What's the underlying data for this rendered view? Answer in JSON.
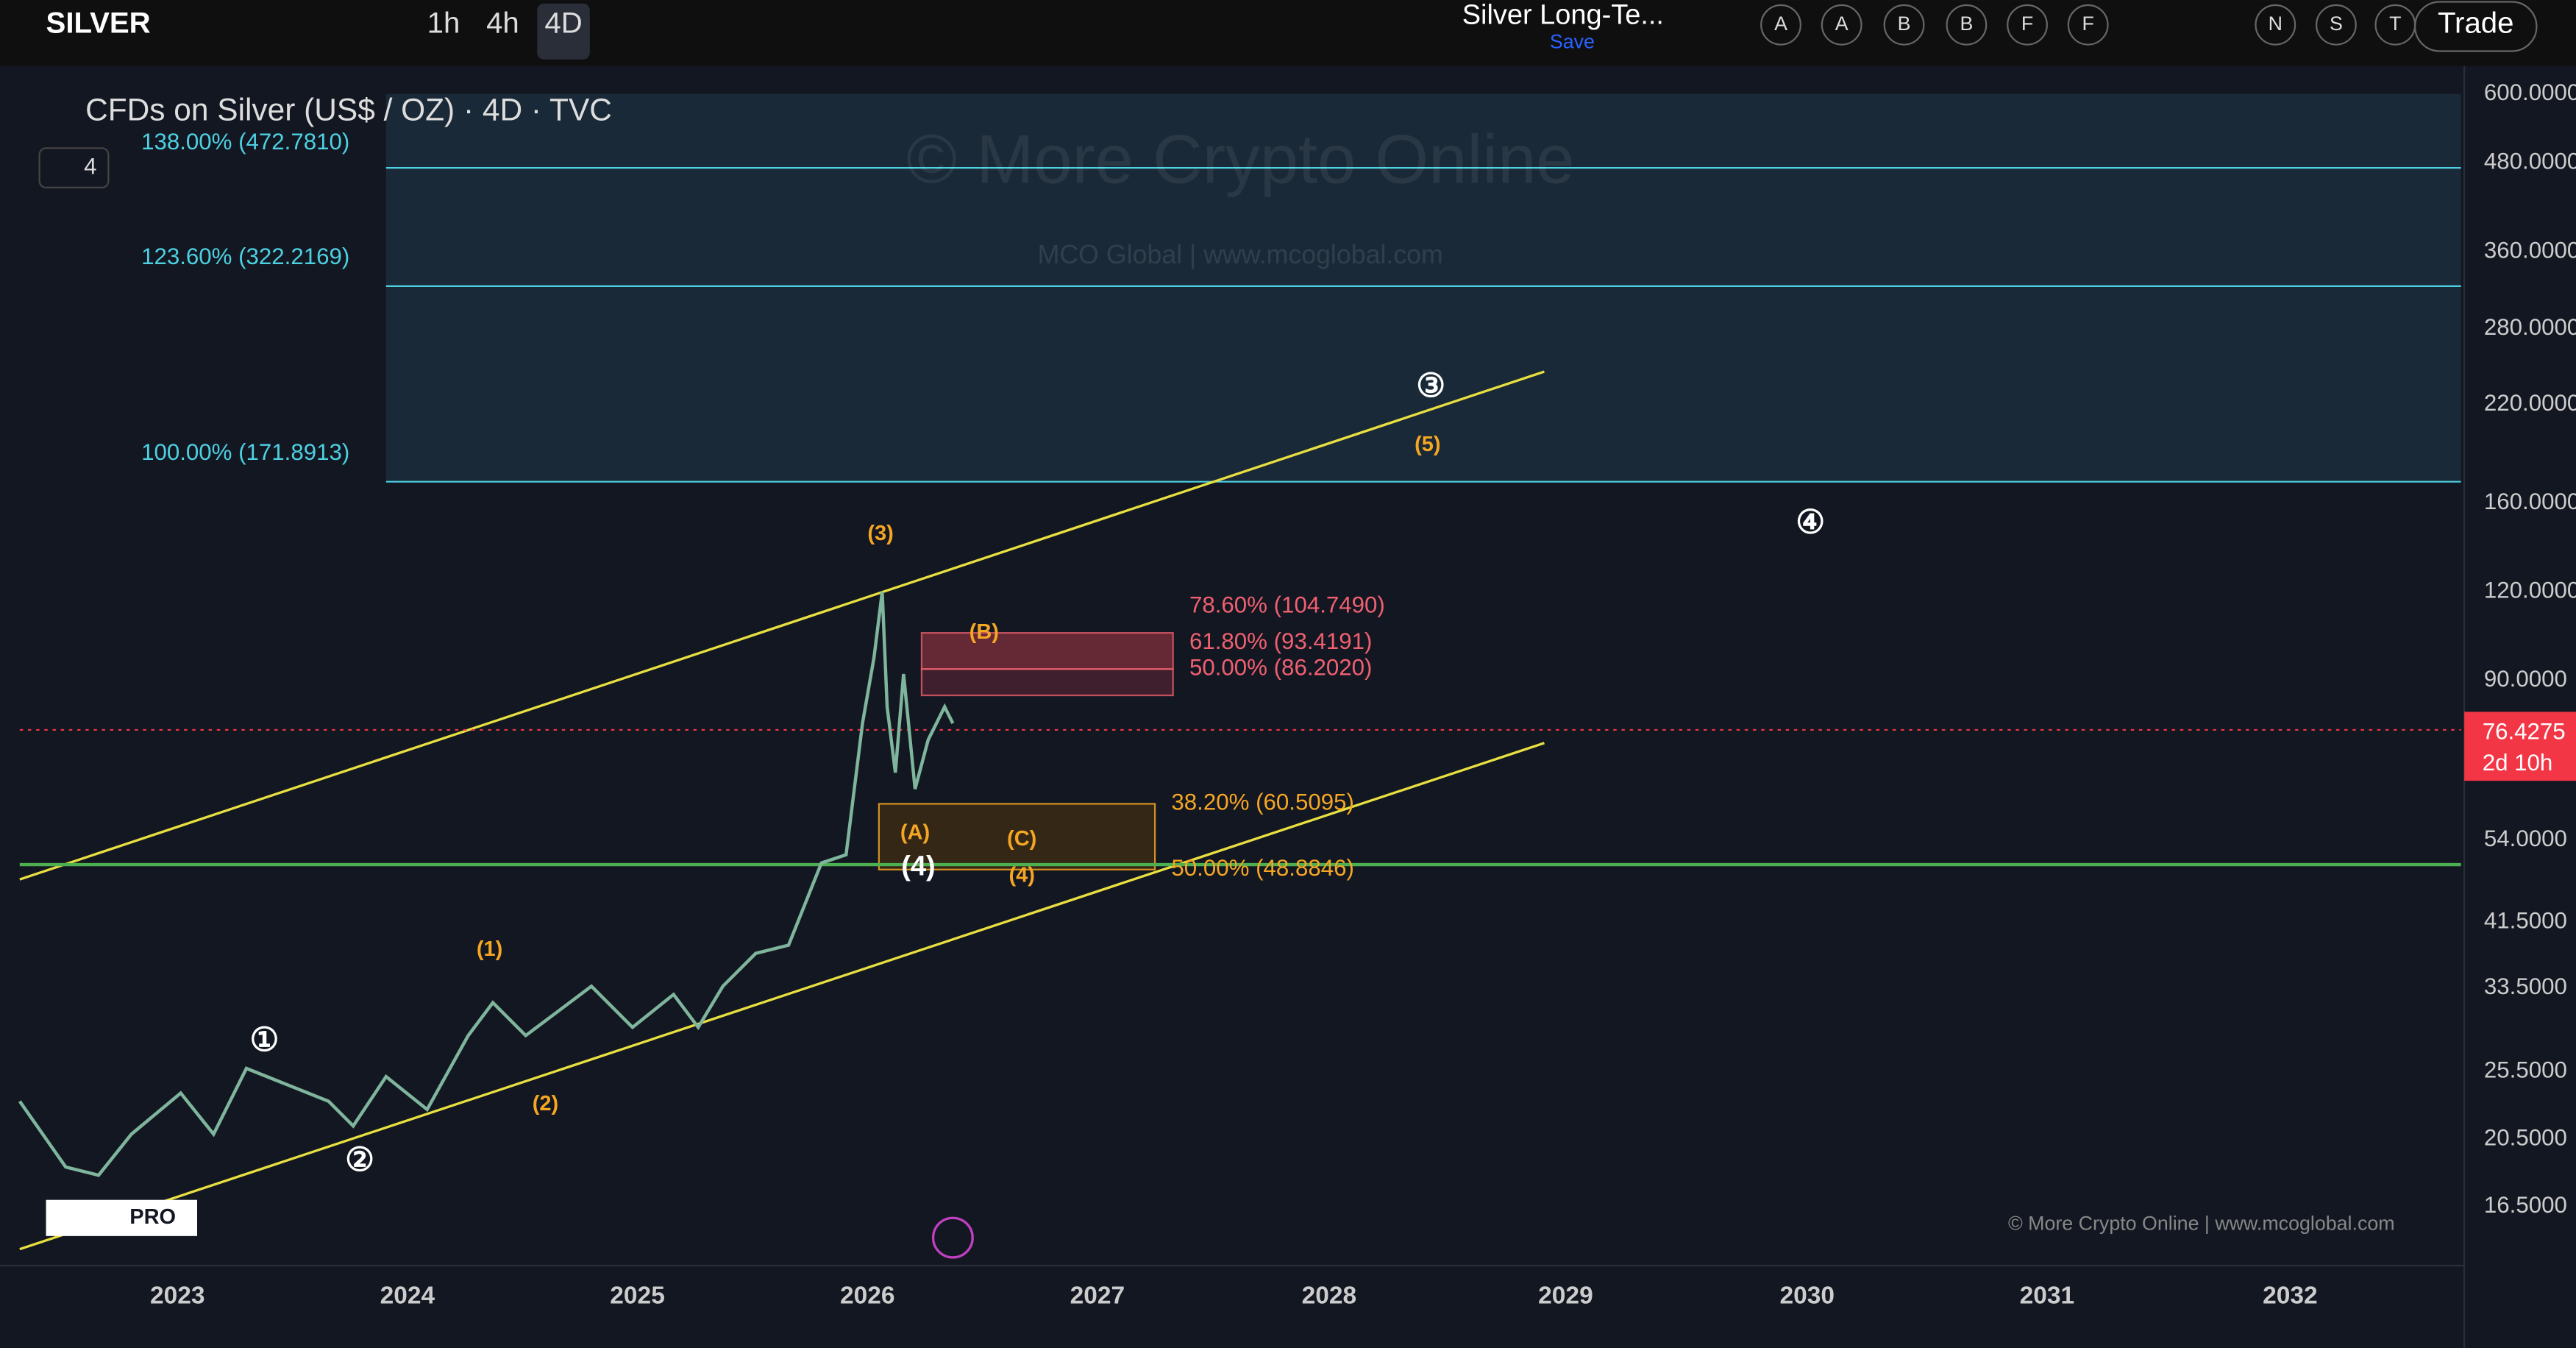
{
  "toolbar": {
    "symbol": "SILVER",
    "intervals": [
      "1h",
      "4h",
      "4D"
    ],
    "layout_name": "Silver Long-Te...",
    "save": "Save",
    "drawing_letters": [
      "A",
      "A",
      "B",
      "B",
      "F",
      "F",
      "N",
      "S",
      "T"
    ],
    "trade": "Trade"
  },
  "chart": {
    "legend": "CFDs on Silver (US$ / OZ) · 4D · TVC",
    "indicator_count": "4",
    "watermark": "© More Crypto Online",
    "watermark_sub": "MCO Global  |  www.mcoglobal.com",
    "footer_watermark": "© More Crypto Online  |  www.mcoglobal.com",
    "logo_badge": "PRO",
    "price_axis": [
      "600.0000",
      "480.0000",
      "360.0000",
      "280.0000",
      "220.0000",
      "160.0000",
      "120.0000",
      "90.0000",
      "54.0000",
      "41.5000",
      "33.5000",
      "25.5000",
      "20.5000",
      "16.5000"
    ],
    "last_price": "76.4275",
    "countdown": "2d 10h",
    "time_axis": [
      "2023",
      "2024",
      "2025",
      "2026",
      "2027",
      "2028",
      "2029",
      "2030",
      "2031",
      "2032"
    ],
    "fib_extension": [
      "138.00% (472.7810)",
      "123.60% (322.2169)",
      "100.00% (171.8913)"
    ],
    "fib_resistance": [
      "78.60% (104.7490)",
      "61.80% (93.4191)",
      "50.00% (86.2020)"
    ],
    "fib_support": [
      "38.20% (60.5095)",
      "50.00% (48.8846)"
    ],
    "waves": [
      "①",
      "②",
      "③",
      "④",
      "(4)",
      "(1)",
      "(2)",
      "(3)",
      "(5)",
      "(A)",
      "(B)",
      "(C)",
      "(4)"
    ]
  }
}
